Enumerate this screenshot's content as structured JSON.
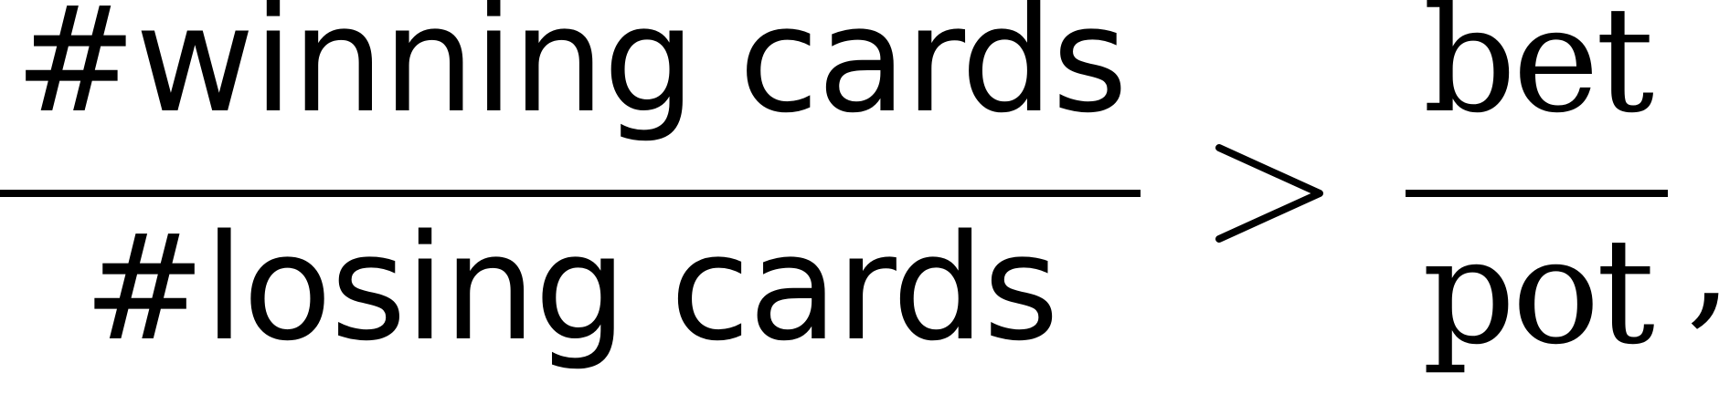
{
  "formula": {
    "left_fraction": {
      "numerator": "#winning cards",
      "denominator": "#losing cards"
    },
    "relation": ">",
    "right_fraction": {
      "numerator": "bet",
      "denominator": "pot"
    },
    "trailing_punctuation": ","
  }
}
